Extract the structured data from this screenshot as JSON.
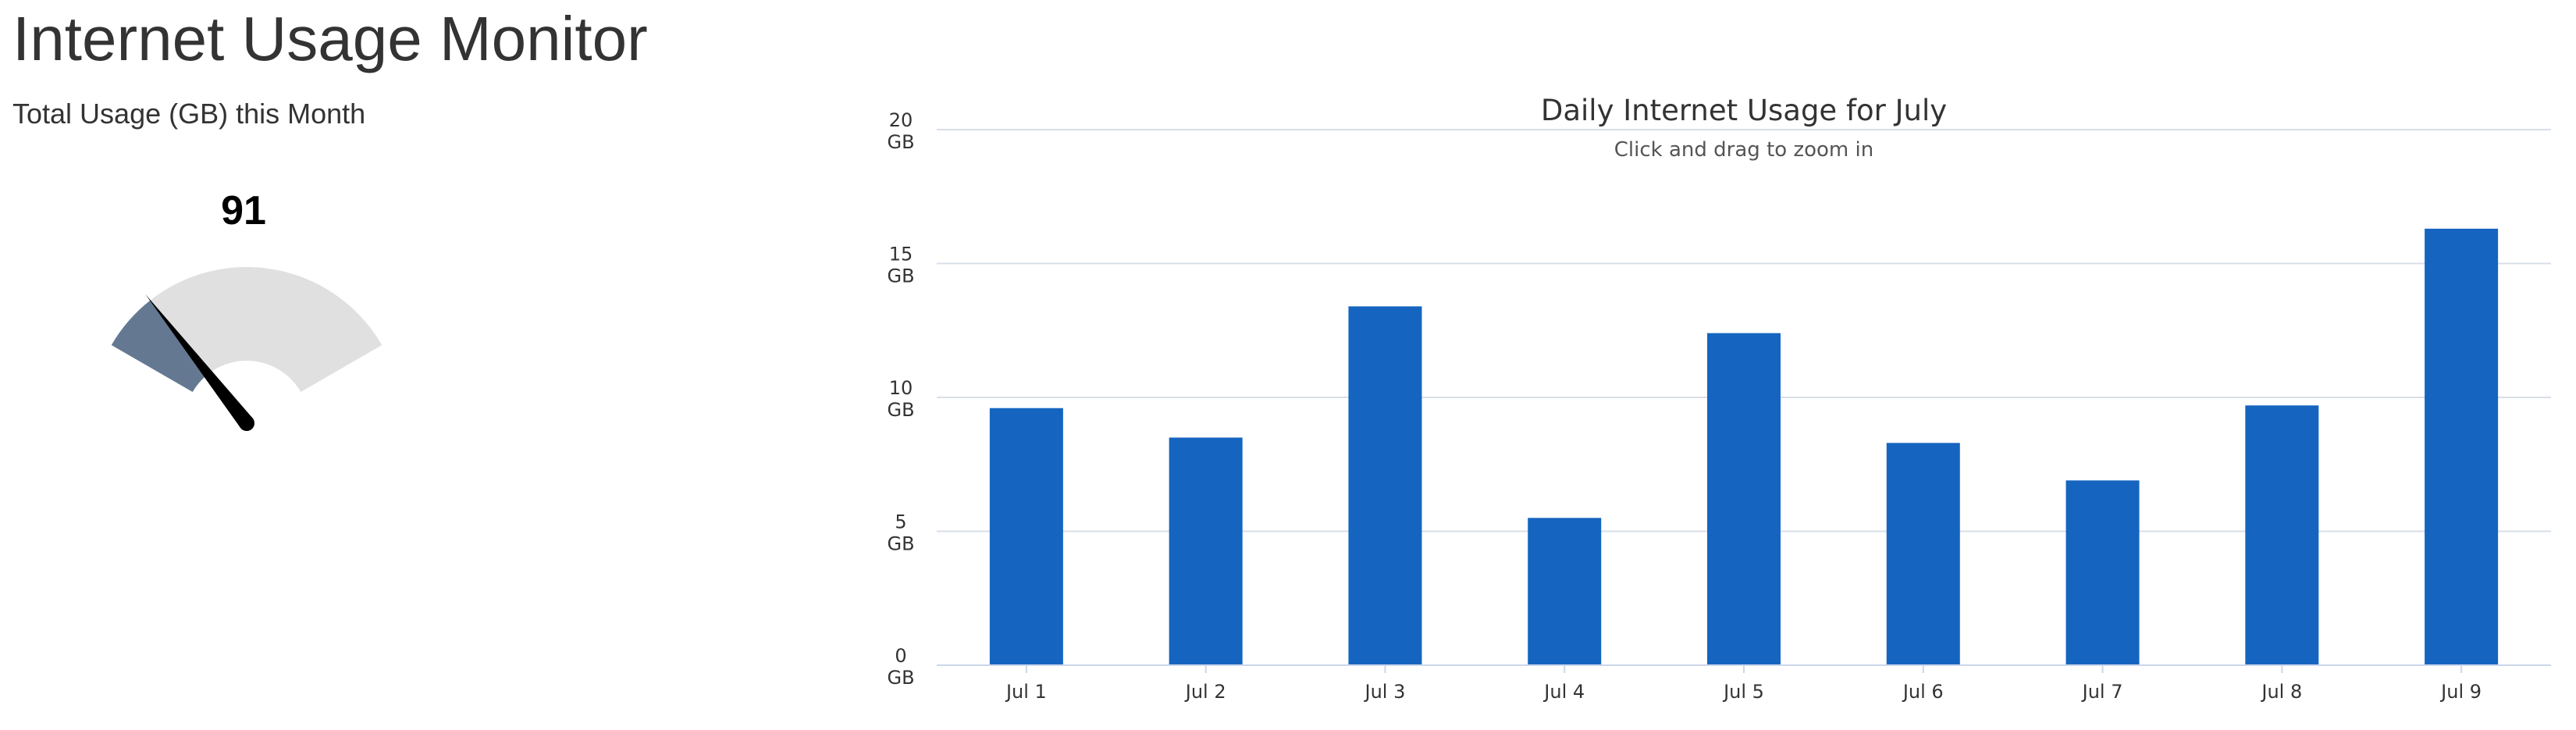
{
  "page": {
    "title": "Internet Usage Monitor"
  },
  "gauge": {
    "heading": "Total Usage (GB) this Month",
    "value": 91,
    "value_label": "91",
    "min": 0,
    "max": 500,
    "fill_color": "#647991",
    "track_color": "#e0e0e0",
    "needle_color": "#000000"
  },
  "chart_data": {
    "type": "bar",
    "title": "Daily Internet Usage for July",
    "subtitle": "Click and drag to zoom in",
    "xlabel": "",
    "ylabel": "",
    "categories": [
      "Jul 1",
      "Jul 2",
      "Jul 3",
      "Jul 4",
      "Jul 5",
      "Jul 6",
      "Jul 7",
      "Jul 8",
      "Jul 9"
    ],
    "values": [
      9.6,
      8.5,
      13.4,
      5.5,
      12.4,
      8.3,
      6.9,
      9.7,
      16.3
    ],
    "ylim": [
      0,
      20
    ],
    "yticks": [
      0,
      5,
      10,
      15,
      20
    ],
    "ytick_unit": "GB",
    "grid": true,
    "legend": "none",
    "bar_color": "#1565c0",
    "grid_color": "#d8dfe8",
    "axis_color": "#ccd6eb"
  }
}
